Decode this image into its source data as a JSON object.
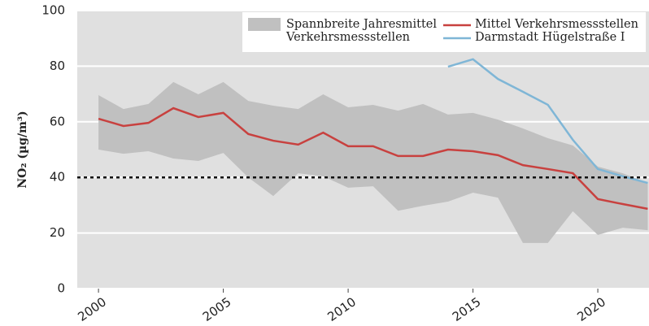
{
  "chart_data": {
    "type": "line",
    "y_label": "NO₂ (µg/m³)",
    "x": [
      2000,
      2001,
      2002,
      2003,
      2004,
      2005,
      2006,
      2007,
      2008,
      2009,
      2010,
      2011,
      2012,
      2013,
      2014,
      2015,
      2016,
      2017,
      2018,
      2019,
      2020,
      2021,
      2022
    ],
    "xlim": [
      1999.15,
      2022.05
    ],
    "xticks": [
      2000,
      2005,
      2010,
      2015,
      2020
    ],
    "ylim": [
      0,
      100
    ],
    "yticks": [
      0,
      20,
      40,
      60,
      80,
      100
    ],
    "grid": true,
    "reference_line": {
      "value": 40,
      "color": "#111111",
      "dashed": true
    },
    "series": [
      {
        "name": "Spannbreite Jahresmittel Verkehrsmessstellen",
        "kind": "band",
        "color": "#c0c0c0",
        "high": [
          69.6,
          64.6,
          66.4,
          74.3,
          69.9,
          74.3,
          67.5,
          65.8,
          64.6,
          69.9,
          65.2,
          66.1,
          64,
          66.4,
          62.6,
          63.2,
          60.8,
          57.6,
          54.1,
          51.5,
          43.9,
          41.5,
          38
        ],
        "low": [
          50,
          48.5,
          49.4,
          46.8,
          45.9,
          48.8,
          40,
          33.3,
          41.5,
          40.4,
          36.3,
          36.8,
          28,
          29.8,
          31.3,
          34.5,
          32.7,
          16.4,
          16.4,
          27.8,
          19.3,
          21.9,
          21
        ]
      },
      {
        "name": "Mittel Verkehrsmessstellen",
        "color": "#c8413f",
        "values": [
          61.1,
          58.5,
          59.6,
          64.9,
          61.7,
          63.2,
          55.6,
          53.2,
          51.8,
          56.1,
          51.2,
          51.2,
          47.7,
          47.7,
          50,
          49.4,
          48,
          44.4,
          43,
          41.5,
          32.2,
          30.4,
          28.7
        ]
      },
      {
        "name": "Darmstadt Hügelstraße I",
        "color": "#7fb6d6",
        "values": [
          null,
          null,
          null,
          null,
          null,
          null,
          null,
          null,
          null,
          null,
          null,
          null,
          null,
          null,
          79.8,
          82.5,
          75.4,
          70.8,
          66.1,
          53.5,
          43,
          40.4,
          38
        ]
      }
    ]
  }
}
